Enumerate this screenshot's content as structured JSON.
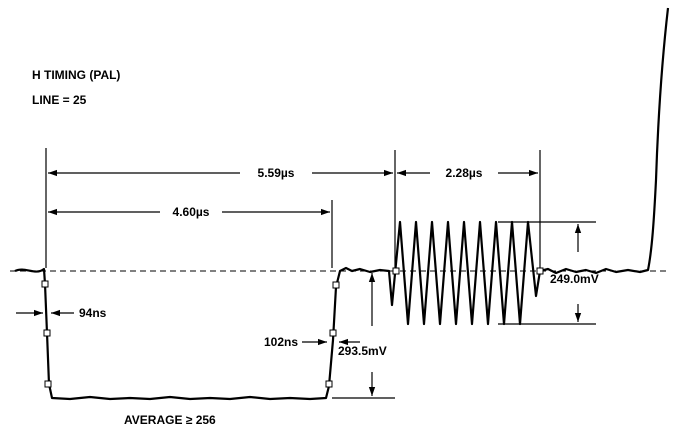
{
  "title": {
    "line1": "H TIMING  (PAL)",
    "line2": "LINE = 25"
  },
  "measurements": {
    "period_total": "5.59µs",
    "period_sync": "4.60µs",
    "period_burst": "2.28µs",
    "fall_time": "94ns",
    "rise_time": "102ns",
    "sync_amplitude": "293.5mV",
    "burst_amplitude": "249.0mV"
  },
  "footer": {
    "average": "AVERAGE ≥ 256"
  }
}
